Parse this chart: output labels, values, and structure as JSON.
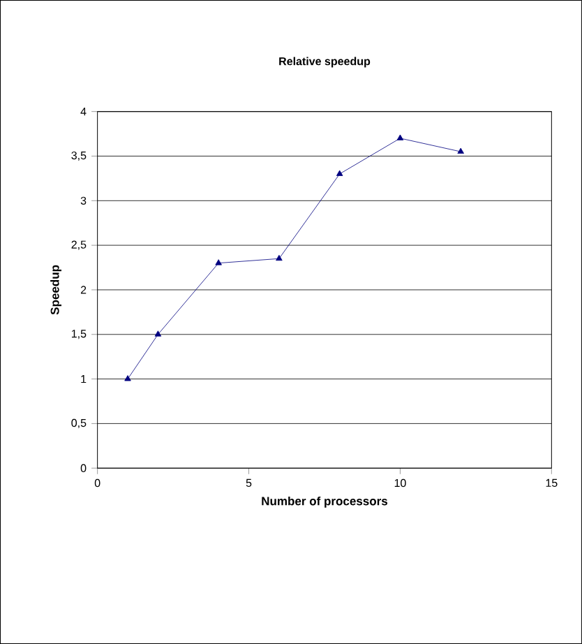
{
  "chart_data": {
    "type": "line",
    "title": "Relative speedup",
    "xlabel": "Number of processors",
    "ylabel": "Speedup",
    "x": [
      1,
      2,
      4,
      6,
      8,
      10,
      12
    ],
    "series": [
      {
        "color": "#000080",
        "values": [
          1,
          1.5,
          2.3,
          2.35,
          3.3,
          3.7,
          3.55
        ]
      }
    ],
    "xlim": [
      0,
      15
    ],
    "xticks": [
      0,
      5,
      10,
      15
    ],
    "ylim": [
      0,
      4
    ],
    "yticks": [
      0,
      {
        "value": 0.5,
        "label": "0,5"
      },
      1,
      {
        "value": 1.5,
        "label": "1,5"
      },
      2,
      {
        "value": 2.5,
        "label": "2,5"
      },
      3,
      {
        "value": 3.5,
        "label": "3,5"
      },
      4
    ],
    "grid": "y",
    "marker": "triangle",
    "line_style": "solid"
  }
}
